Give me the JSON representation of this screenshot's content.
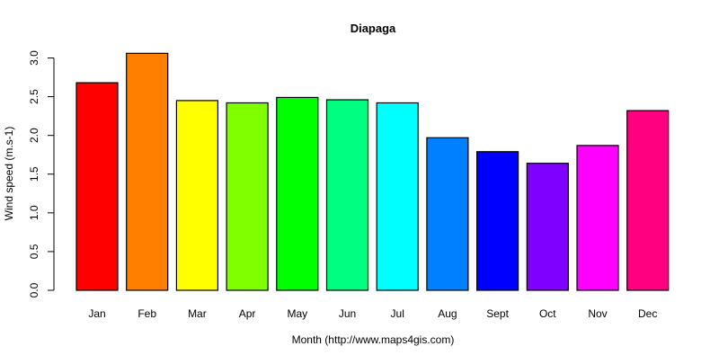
{
  "chart_data": {
    "type": "bar",
    "title": "Diapaga",
    "xlabel": "Month (http://www.maps4gis.com)",
    "ylabel": "Wind speed (m.s-1)",
    "ylim": [
      0,
      3.0
    ],
    "yticks": [
      "0.0",
      "0.5",
      "1.0",
      "1.5",
      "2.0",
      "2.5",
      "3.0"
    ],
    "grid": false,
    "legend": null,
    "categories": [
      "Jan",
      "Feb",
      "Mar",
      "Apr",
      "May",
      "Jun",
      "Jul",
      "Aug",
      "Sept",
      "Oct",
      "Nov",
      "Dec"
    ],
    "values": [
      2.68,
      3.06,
      2.45,
      2.42,
      2.49,
      2.46,
      2.42,
      1.97,
      1.79,
      1.64,
      1.87,
      2.32
    ],
    "colors": [
      "#FF0000",
      "#FF8000",
      "#FFFF00",
      "#80FF00",
      "#00FF00",
      "#00FF80",
      "#00FFFF",
      "#0080FF",
      "#0000FF",
      "#8000FF",
      "#FF00FF",
      "#FF0080"
    ]
  }
}
